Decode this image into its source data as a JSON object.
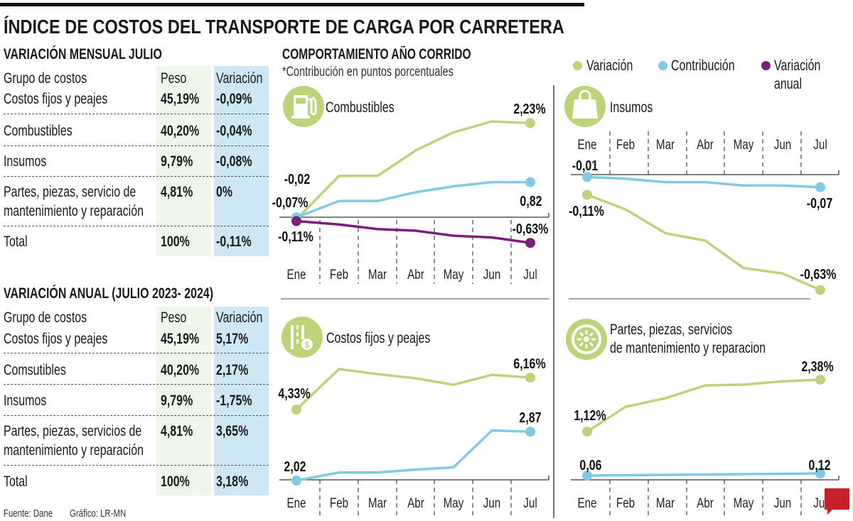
{
  "title": "ÍNDICE DE COSTOS DEL TRANSPORTE DE CARGA POR CARRETERA",
  "colors": {
    "variacion": "#bcd37a",
    "contribucion": "#7fcbe6",
    "variacion_anual": "#7b1f7a",
    "peso_bg": "#f1f6ea",
    "variacion_bg": "#cde8f4",
    "brand": "#c8202a"
  },
  "monthly_table": {
    "title": "VARIACIÓN MENSUAL JULIO",
    "headers": [
      "Grupo de costos",
      "Peso",
      "Variación"
    ],
    "rows": [
      {
        "group": "Costos fijos y peajes",
        "group2": "",
        "peso": "45,19%",
        "variacion": "-0,09%"
      },
      {
        "group": "Combustibles",
        "group2": "",
        "peso": "40,20%",
        "variacion": "-0,04%"
      },
      {
        "group": "Insumos",
        "group2": "",
        "peso": "9,79%",
        "variacion": "-0,08%"
      },
      {
        "group": "Partes, piezas, servicio de",
        "group2": "mantenimiento y reparación",
        "peso": "4,81%",
        "variacion": "0%"
      },
      {
        "group": "Total",
        "group2": "",
        "peso": "100%",
        "variacion": "-0,11%"
      }
    ]
  },
  "annual_table": {
    "title": "VARIACIÓN ANUAL (JULIO 2023- 2024)",
    "headers": [
      "Grupo de costos",
      "Peso",
      "Variación"
    ],
    "rows": [
      {
        "group": "Costos fijos y peajes",
        "group2": "",
        "peso": "45,19%",
        "variacion": "5,17%"
      },
      {
        "group": "Comsutibles",
        "group2": "",
        "peso": "40,20%",
        "variacion": "2,17%"
      },
      {
        "group": "Insumos",
        "group2": "",
        "peso": "9,79%",
        "variacion": "-1,75%"
      },
      {
        "group": "Partes, piezas, servicios de",
        "group2": "mantenimiento y reparación",
        "peso": "4,81%",
        "variacion": "3,65%"
      },
      {
        "group": "Total",
        "group2": "",
        "peso": "100%",
        "variacion": "3,18%"
      }
    ]
  },
  "charts_header": {
    "title": "COMPORTAMIENTO AÑO CORRIDO",
    "note": "*Contribución en puntos porcentuales"
  },
  "legend": [
    {
      "label": "Variación",
      "label2": "",
      "color": "#bcd37a"
    },
    {
      "label": "Contribución",
      "label2": "",
      "color": "#7fcbe6"
    },
    {
      "label": "Variación",
      "label2": "anual",
      "color": "#7b1f7a"
    }
  ],
  "footer": {
    "source": "Fuente: Dane",
    "credit": "Gráfico: LR-MN",
    "logo": "LR"
  },
  "chart_data": [
    {
      "type": "line",
      "title": "Combustibles",
      "icon": "fuel-pump-icon",
      "categories": [
        "Ene",
        "Feb",
        "Mar",
        "Abr",
        "May",
        "Jun",
        "Jul"
      ],
      "series": [
        {
          "name": "Variación",
          "values": [
            -0.07,
            0.97,
            0.97,
            1.58,
            2.01,
            2.27,
            2.23
          ],
          "labels": [
            "-0,07%",
            "2,23%"
          ]
        },
        {
          "name": "Contribución",
          "values": [
            -0.02,
            0.37,
            0.37,
            0.58,
            0.72,
            0.82,
            0.82
          ],
          "labels": [
            "-0,02",
            "0,82"
          ]
        },
        {
          "name": "Variación anual",
          "values": [
            -0.11,
            -0.19,
            -0.3,
            -0.34,
            -0.46,
            -0.5,
            -0.63
          ],
          "labels": [
            "-0,11%",
            "-0,63%"
          ]
        }
      ]
    },
    {
      "type": "line",
      "title": "Insumos",
      "icon": "shopping-bag-icon",
      "categories": [
        "Ene",
        "Feb",
        "Mar",
        "Abr",
        "May",
        "Jun",
        "Jul"
      ],
      "series": [
        {
          "name": "Variación",
          "values": [
            -0.11,
            -0.19,
            -0.32,
            -0.36,
            -0.51,
            -0.54,
            -0.63
          ],
          "labels": [
            "-0,11%",
            "-0,63%"
          ]
        },
        {
          "name": "Contribución",
          "values": [
            -0.01,
            -0.02,
            -0.04,
            -0.04,
            -0.06,
            -0.06,
            -0.07
          ],
          "labels": [
            "-0,01",
            "-0,07"
          ]
        }
      ]
    },
    {
      "type": "line",
      "title": "Costos fijos y peajes",
      "icon": "road-toll-icon",
      "categories": [
        "Ene",
        "Feb",
        "Mar",
        "Abr",
        "May",
        "Jun",
        "Jul"
      ],
      "series": [
        {
          "name": "Variación",
          "values": [
            4.33,
            6.65,
            6.36,
            6.12,
            5.75,
            6.32,
            6.16
          ],
          "labels": [
            "4,33%",
            "6,16%"
          ]
        },
        {
          "name": "Contribución",
          "values": [
            2.02,
            2.16,
            2.16,
            2.21,
            2.25,
            2.89,
            2.87
          ],
          "labels": [
            "2,02",
            "2,87"
          ]
        }
      ]
    },
    {
      "type": "line",
      "title": "Partes, piezas, servicios",
      "title2": "de mantenimiento y reparacion",
      "icon": "wheel-icon",
      "categories": [
        "Ene",
        "Feb",
        "Mar",
        "Abr",
        "May",
        "Jun",
        "Jul"
      ],
      "series": [
        {
          "name": "Variación",
          "values": [
            1.12,
            1.72,
            1.93,
            2.24,
            2.26,
            2.34,
            2.38
          ],
          "labels": [
            "1,12%",
            "2,38%"
          ]
        },
        {
          "name": "Contribución",
          "values": [
            0.06,
            0.07,
            0.08,
            0.09,
            0.1,
            0.11,
            0.12
          ],
          "labels": [
            "0,06",
            "0,12"
          ]
        }
      ]
    }
  ]
}
